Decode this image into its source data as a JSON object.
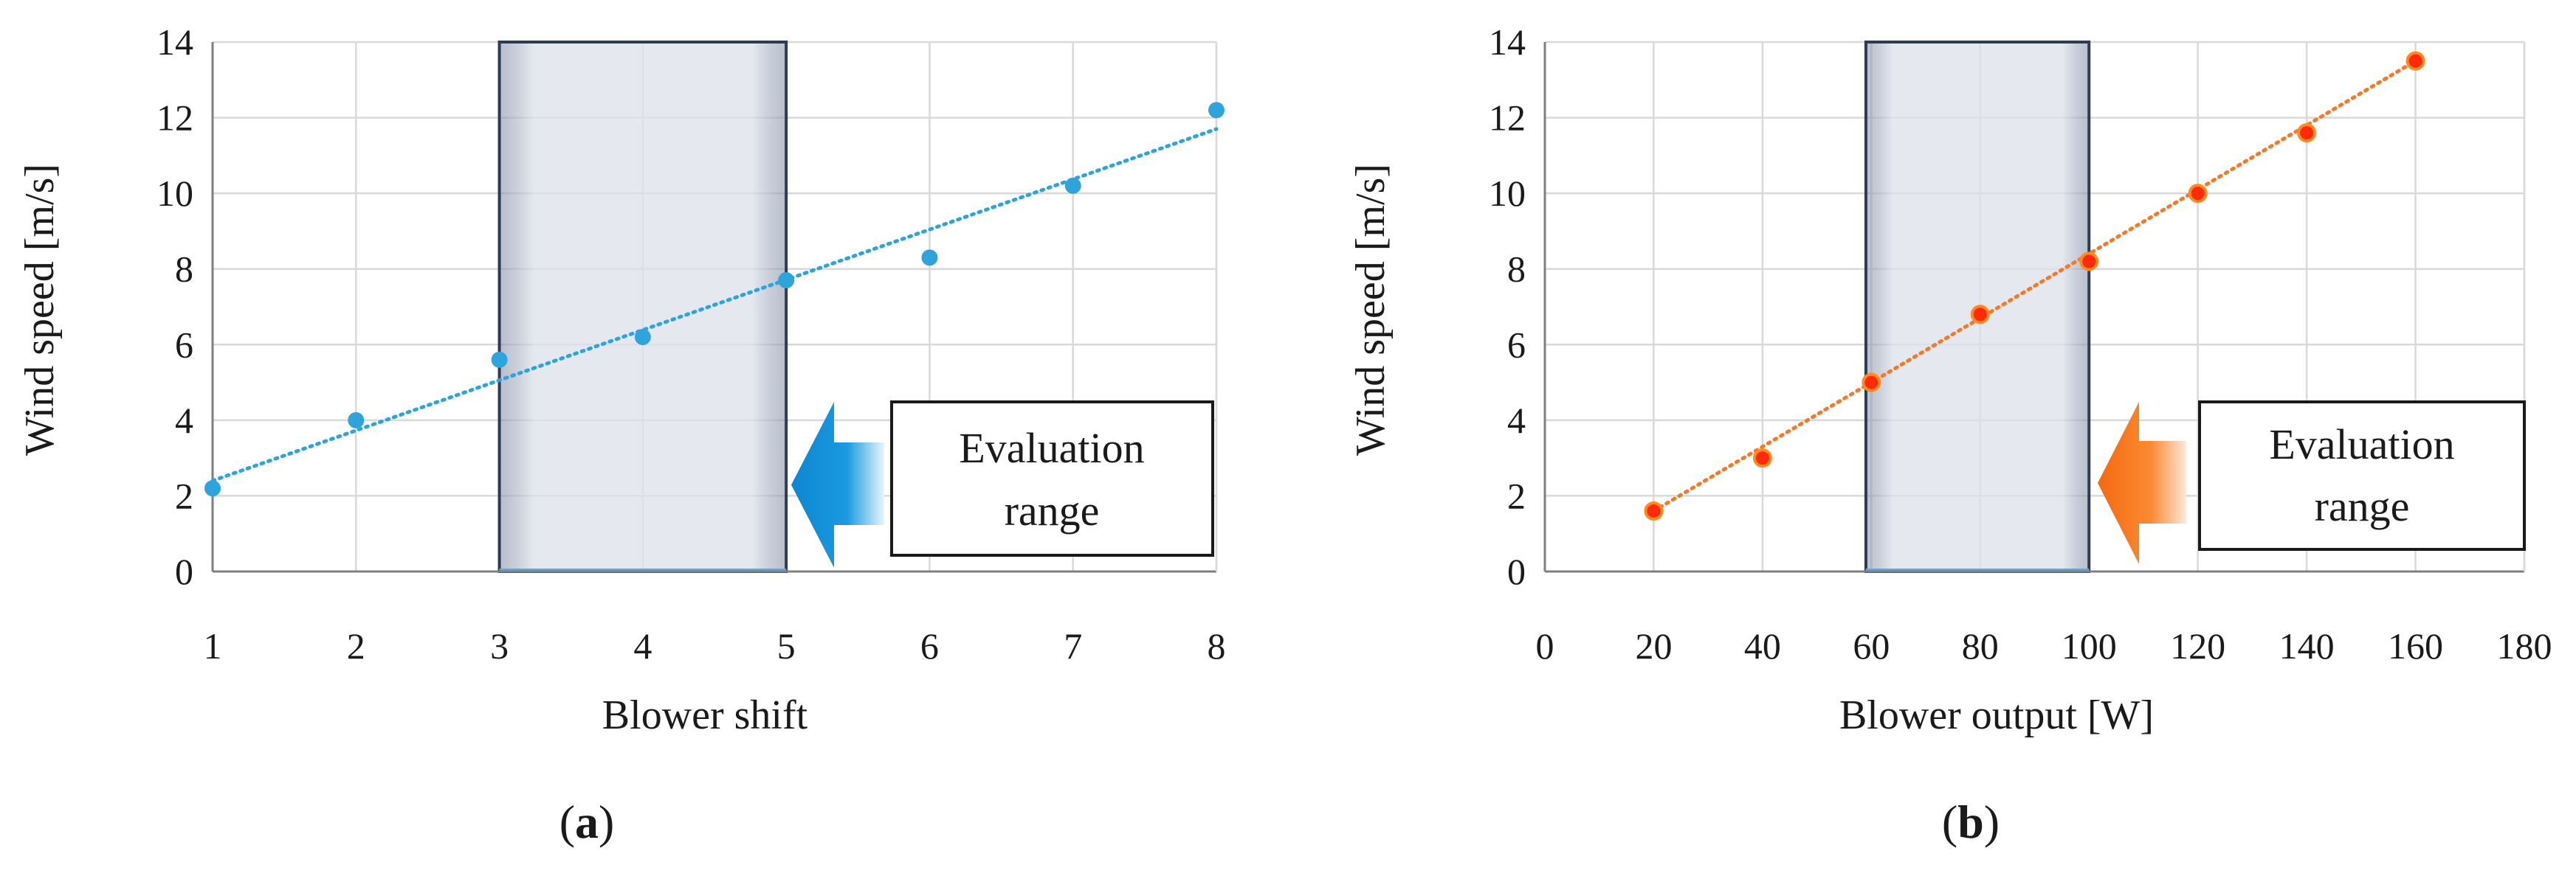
{
  "chart_data": [
    {
      "type": "scatter",
      "panel_label": "a",
      "xlabel": "Blower shift",
      "ylabel": "Wind speed [m/s]",
      "xlim": [
        1,
        8
      ],
      "ylim": [
        0,
        14
      ],
      "xticks": [
        1,
        2,
        3,
        4,
        5,
        6,
        7,
        8
      ],
      "yticks": [
        0,
        2,
        4,
        6,
        8,
        10,
        12,
        14
      ],
      "grid": true,
      "x": [
        1,
        2,
        3,
        4,
        5,
        6,
        7,
        8
      ],
      "y": [
        2.2,
        4.0,
        5.6,
        6.2,
        7.7,
        8.3,
        10.2,
        12.2
      ],
      "trendline": {
        "style": "dotted",
        "from": [
          1,
          2.4
        ],
        "to": [
          8,
          11.7
        ]
      },
      "evaluation_range": [
        3,
        5
      ],
      "annotation": {
        "line1": "Evaluation",
        "line2": "range"
      },
      "color": "#2fa3dc",
      "arrow_color": "#1592d6"
    },
    {
      "type": "scatter",
      "panel_label": "b",
      "xlabel": "Blower output [W]",
      "ylabel": "Wind speed [m/s]",
      "xlim": [
        0,
        180
      ],
      "ylim": [
        0,
        14
      ],
      "xticks": [
        0,
        20,
        40,
        60,
        80,
        100,
        120,
        140,
        160,
        180
      ],
      "yticks": [
        0,
        2,
        4,
        6,
        8,
        10,
        12,
        14
      ],
      "grid": true,
      "x": [
        20,
        40,
        60,
        80,
        100,
        120,
        140,
        160
      ],
      "y": [
        1.6,
        3.0,
        5.0,
        6.8,
        8.2,
        10.0,
        11.6,
        13.5
      ],
      "trendline": {
        "style": "dotted",
        "from": [
          20,
          1.6
        ],
        "to": [
          160,
          13.5
        ]
      },
      "evaluation_range": [
        59,
        100
      ],
      "annotation": {
        "line1": "Evaluation",
        "line2": "range"
      },
      "color": "#ff2a0a",
      "marker_edge": "#ff8a20",
      "trend_color": "#f47a2a",
      "arrow_color": "#f77a1e"
    }
  ]
}
